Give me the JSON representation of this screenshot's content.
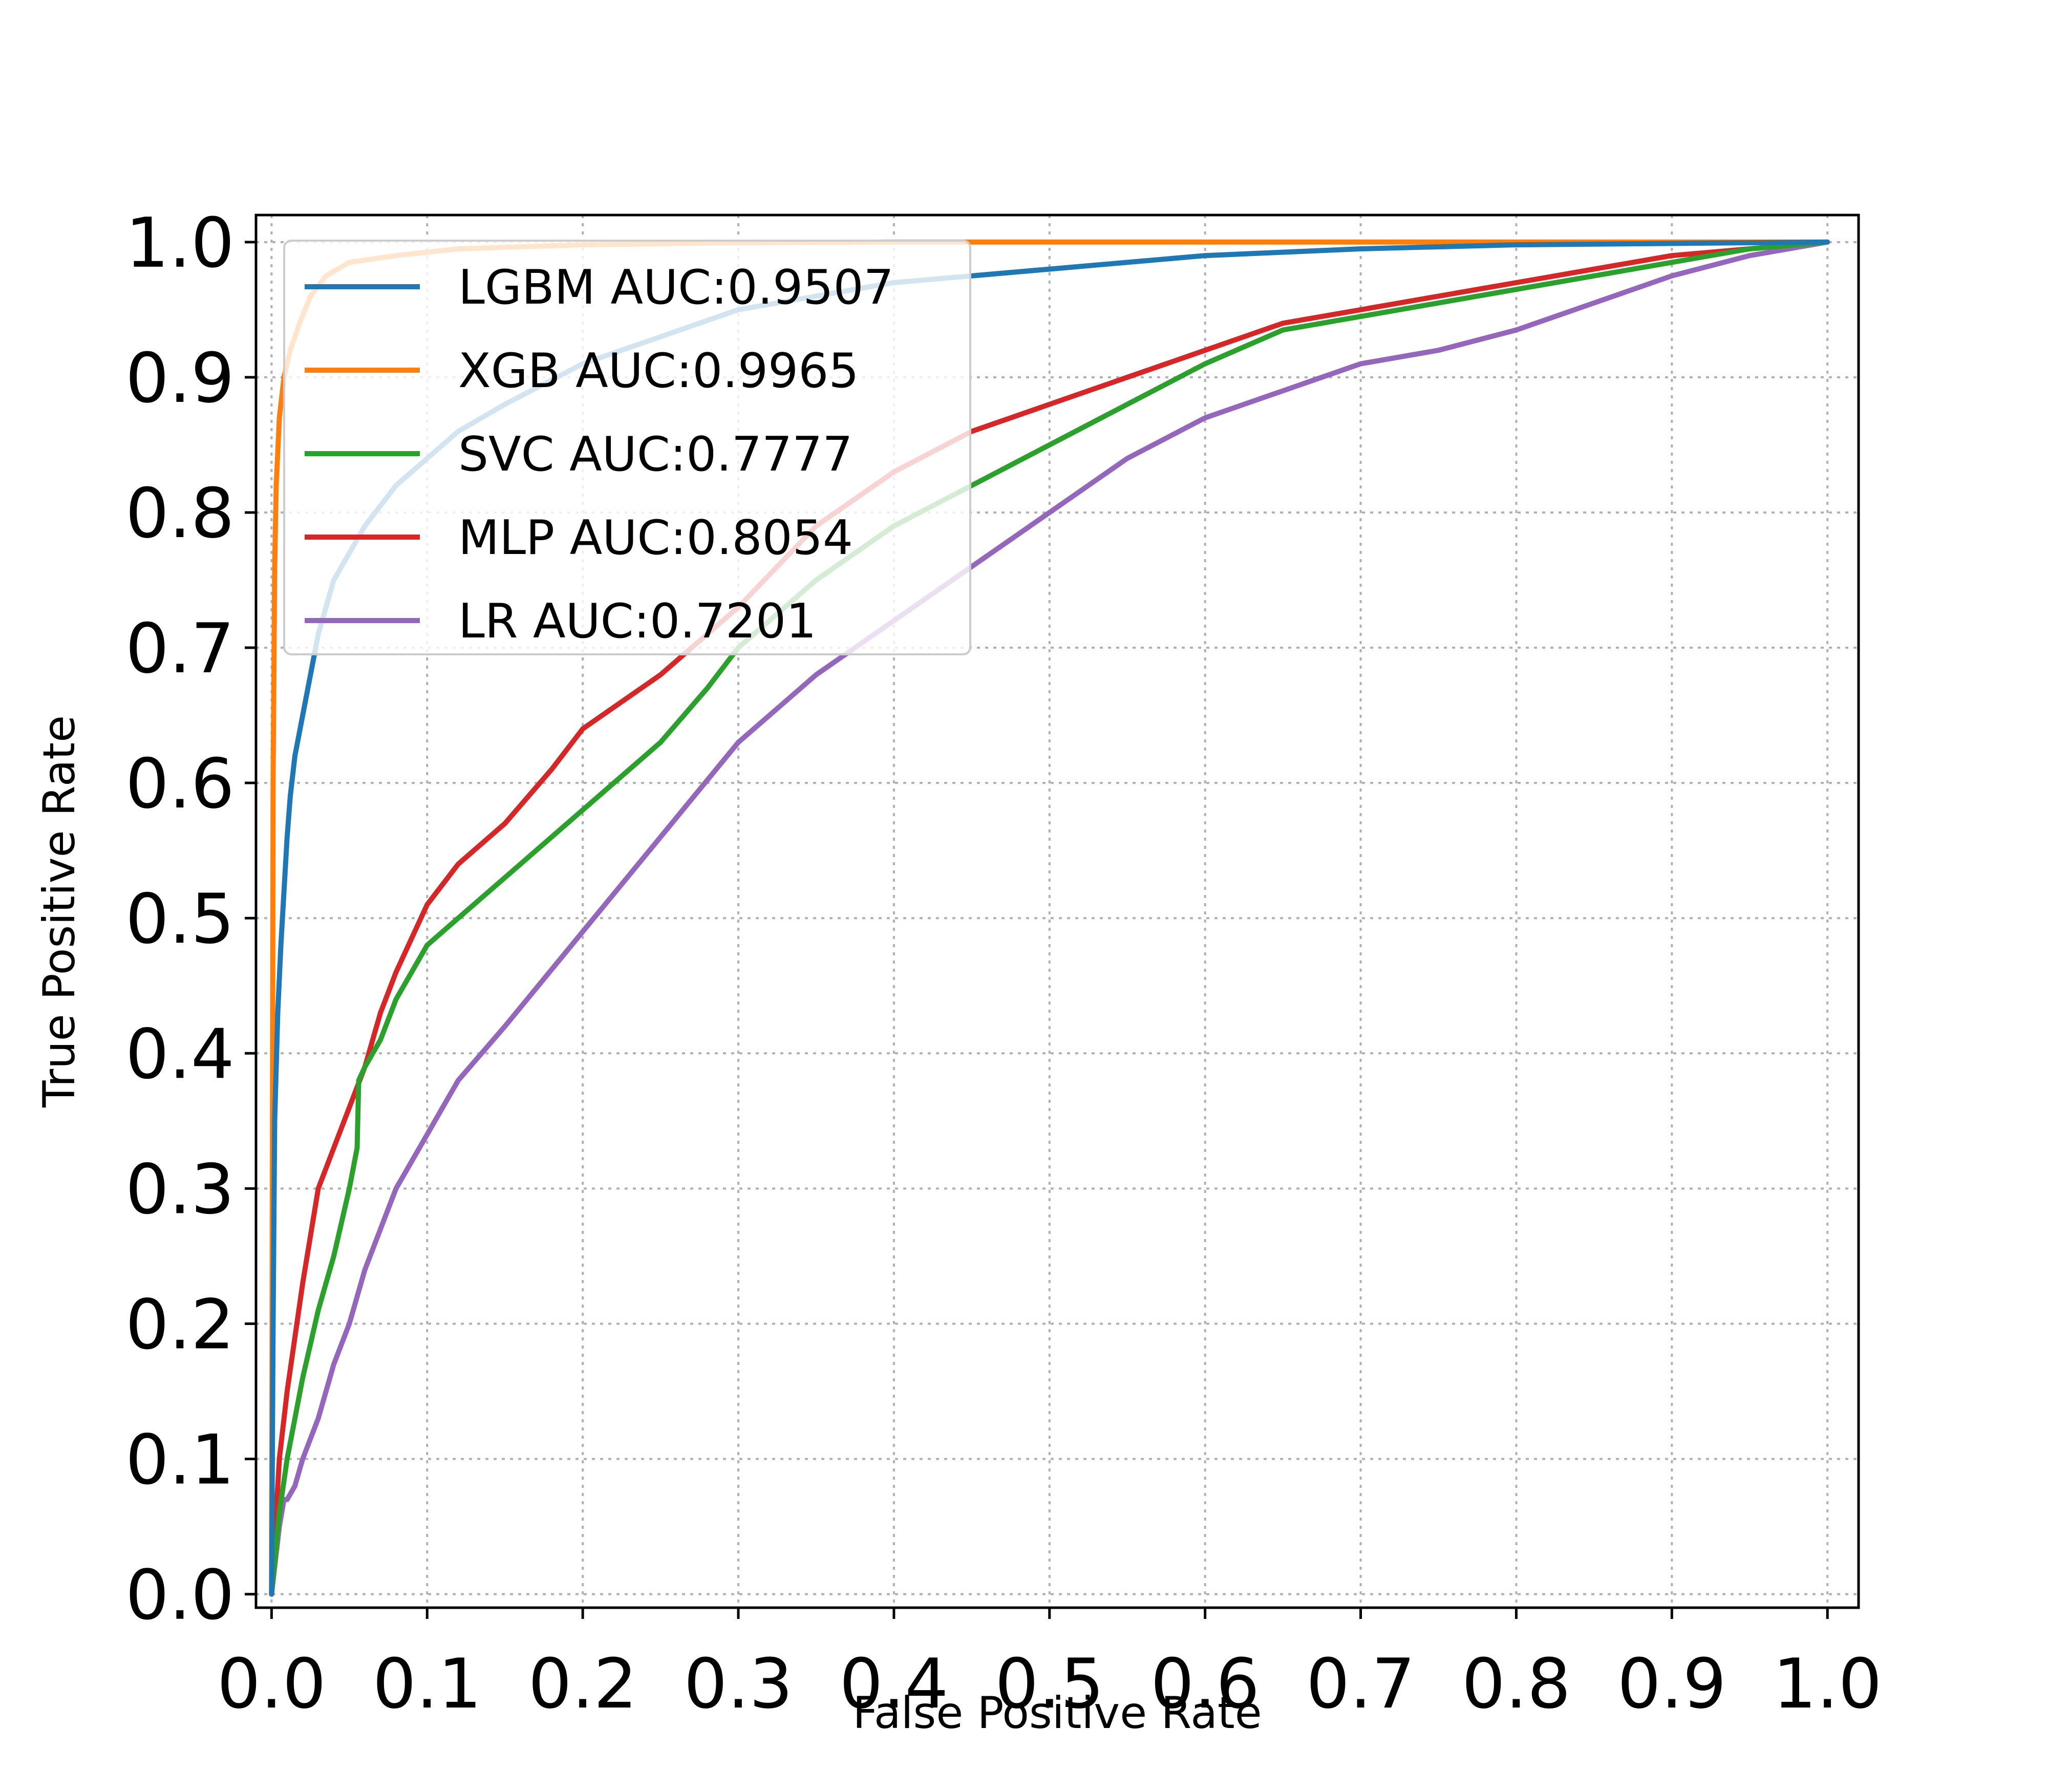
{
  "chart_data": {
    "type": "line",
    "title": "",
    "xlabel": "False Positive Rate",
    "ylabel": "True Positive Rate",
    "xlim": [
      -0.01,
      1.02
    ],
    "ylim": [
      -0.01,
      1.02
    ],
    "xticks": [
      "0.0",
      "0.1",
      "0.2",
      "0.3",
      "0.4",
      "0.5",
      "0.6",
      "0.7",
      "0.8",
      "0.9",
      "1.0"
    ],
    "yticks": [
      "0.0",
      "0.1",
      "0.2",
      "0.3",
      "0.4",
      "0.5",
      "0.6",
      "0.7",
      "0.8",
      "0.9",
      "1.0"
    ],
    "grid": true,
    "legend_position": "upper-left",
    "series": [
      {
        "name": "LGBM AUC:0.9507",
        "color": "#1f77b4",
        "x": [
          0,
          0.001,
          0.002,
          0.004,
          0.006,
          0.008,
          0.01,
          0.012,
          0.015,
          0.02,
          0.025,
          0.03,
          0.035,
          0.04,
          0.05,
          0.06,
          0.07,
          0.08,
          0.1,
          0.12,
          0.15,
          0.2,
          0.25,
          0.3,
          0.35,
          0.4,
          0.5,
          0.6,
          0.7,
          0.8,
          0.9,
          1.0
        ],
        "y": [
          0,
          0.2,
          0.35,
          0.43,
          0.48,
          0.52,
          0.56,
          0.59,
          0.62,
          0.65,
          0.68,
          0.71,
          0.73,
          0.75,
          0.77,
          0.79,
          0.805,
          0.82,
          0.84,
          0.86,
          0.88,
          0.91,
          0.93,
          0.95,
          0.96,
          0.97,
          0.98,
          0.99,
          0.995,
          0.998,
          0.999,
          1.0
        ]
      },
      {
        "name": "XGB AUC:0.9965",
        "color": "#ff7f0e",
        "x": [
          0,
          0.0005,
          0.001,
          0.002,
          0.003,
          0.005,
          0.008,
          0.012,
          0.018,
          0.025,
          0.035,
          0.05,
          0.08,
          0.12,
          0.2,
          0.3,
          0.4,
          0.5,
          0.7,
          1.0
        ],
        "y": [
          0,
          0.3,
          0.6,
          0.76,
          0.82,
          0.87,
          0.9,
          0.92,
          0.94,
          0.96,
          0.975,
          0.985,
          0.99,
          0.995,
          0.998,
          0.9995,
          1.0,
          1.0,
          1.0,
          1.0
        ]
      },
      {
        "name": "SVC AUC:0.7777",
        "color": "#2ca02c",
        "x": [
          0,
          0.005,
          0.01,
          0.015,
          0.02,
          0.03,
          0.04,
          0.05,
          0.055,
          0.056,
          0.06,
          0.07,
          0.08,
          0.1,
          0.12,
          0.15,
          0.2,
          0.25,
          0.28,
          0.3,
          0.35,
          0.4,
          0.45,
          0.5,
          0.55,
          0.6,
          0.65,
          0.7,
          0.75,
          0.8,
          0.85,
          0.9,
          0.95,
          1.0
        ],
        "y": [
          0,
          0.06,
          0.1,
          0.13,
          0.16,
          0.21,
          0.25,
          0.3,
          0.33,
          0.38,
          0.39,
          0.41,
          0.44,
          0.48,
          0.5,
          0.53,
          0.58,
          0.63,
          0.67,
          0.7,
          0.75,
          0.79,
          0.82,
          0.85,
          0.88,
          0.91,
          0.935,
          0.945,
          0.955,
          0.965,
          0.975,
          0.985,
          0.995,
          1.0
        ]
      },
      {
        "name": "MLP AUC:0.8054",
        "color": "#d62728",
        "x": [
          0,
          0.005,
          0.01,
          0.015,
          0.02,
          0.03,
          0.04,
          0.05,
          0.06,
          0.07,
          0.08,
          0.1,
          0.12,
          0.15,
          0.18,
          0.2,
          0.25,
          0.3,
          0.35,
          0.4,
          0.45,
          0.5,
          0.55,
          0.6,
          0.65,
          0.7,
          0.75,
          0.8,
          0.85,
          0.9,
          0.95,
          1.0
        ],
        "y": [
          0,
          0.1,
          0.15,
          0.19,
          0.23,
          0.3,
          0.33,
          0.36,
          0.39,
          0.43,
          0.46,
          0.51,
          0.54,
          0.57,
          0.61,
          0.64,
          0.68,
          0.73,
          0.79,
          0.83,
          0.86,
          0.88,
          0.9,
          0.92,
          0.94,
          0.95,
          0.96,
          0.97,
          0.98,
          0.99,
          0.995,
          1.0
        ]
      },
      {
        "name": "LR AUC:0.7201",
        "color": "#9467bd",
        "x": [
          0,
          0.005,
          0.008,
          0.01,
          0.015,
          0.02,
          0.03,
          0.04,
          0.05,
          0.06,
          0.07,
          0.08,
          0.1,
          0.12,
          0.15,
          0.2,
          0.25,
          0.3,
          0.35,
          0.4,
          0.45,
          0.5,
          0.55,
          0.6,
          0.65,
          0.7,
          0.75,
          0.8,
          0.85,
          0.9,
          0.95,
          1.0
        ],
        "y": [
          0,
          0.05,
          0.07,
          0.07,
          0.08,
          0.1,
          0.13,
          0.17,
          0.2,
          0.24,
          0.27,
          0.3,
          0.34,
          0.38,
          0.42,
          0.49,
          0.56,
          0.63,
          0.68,
          0.72,
          0.76,
          0.8,
          0.84,
          0.87,
          0.89,
          0.91,
          0.92,
          0.935,
          0.955,
          0.975,
          0.99,
          1.0
        ]
      }
    ]
  }
}
